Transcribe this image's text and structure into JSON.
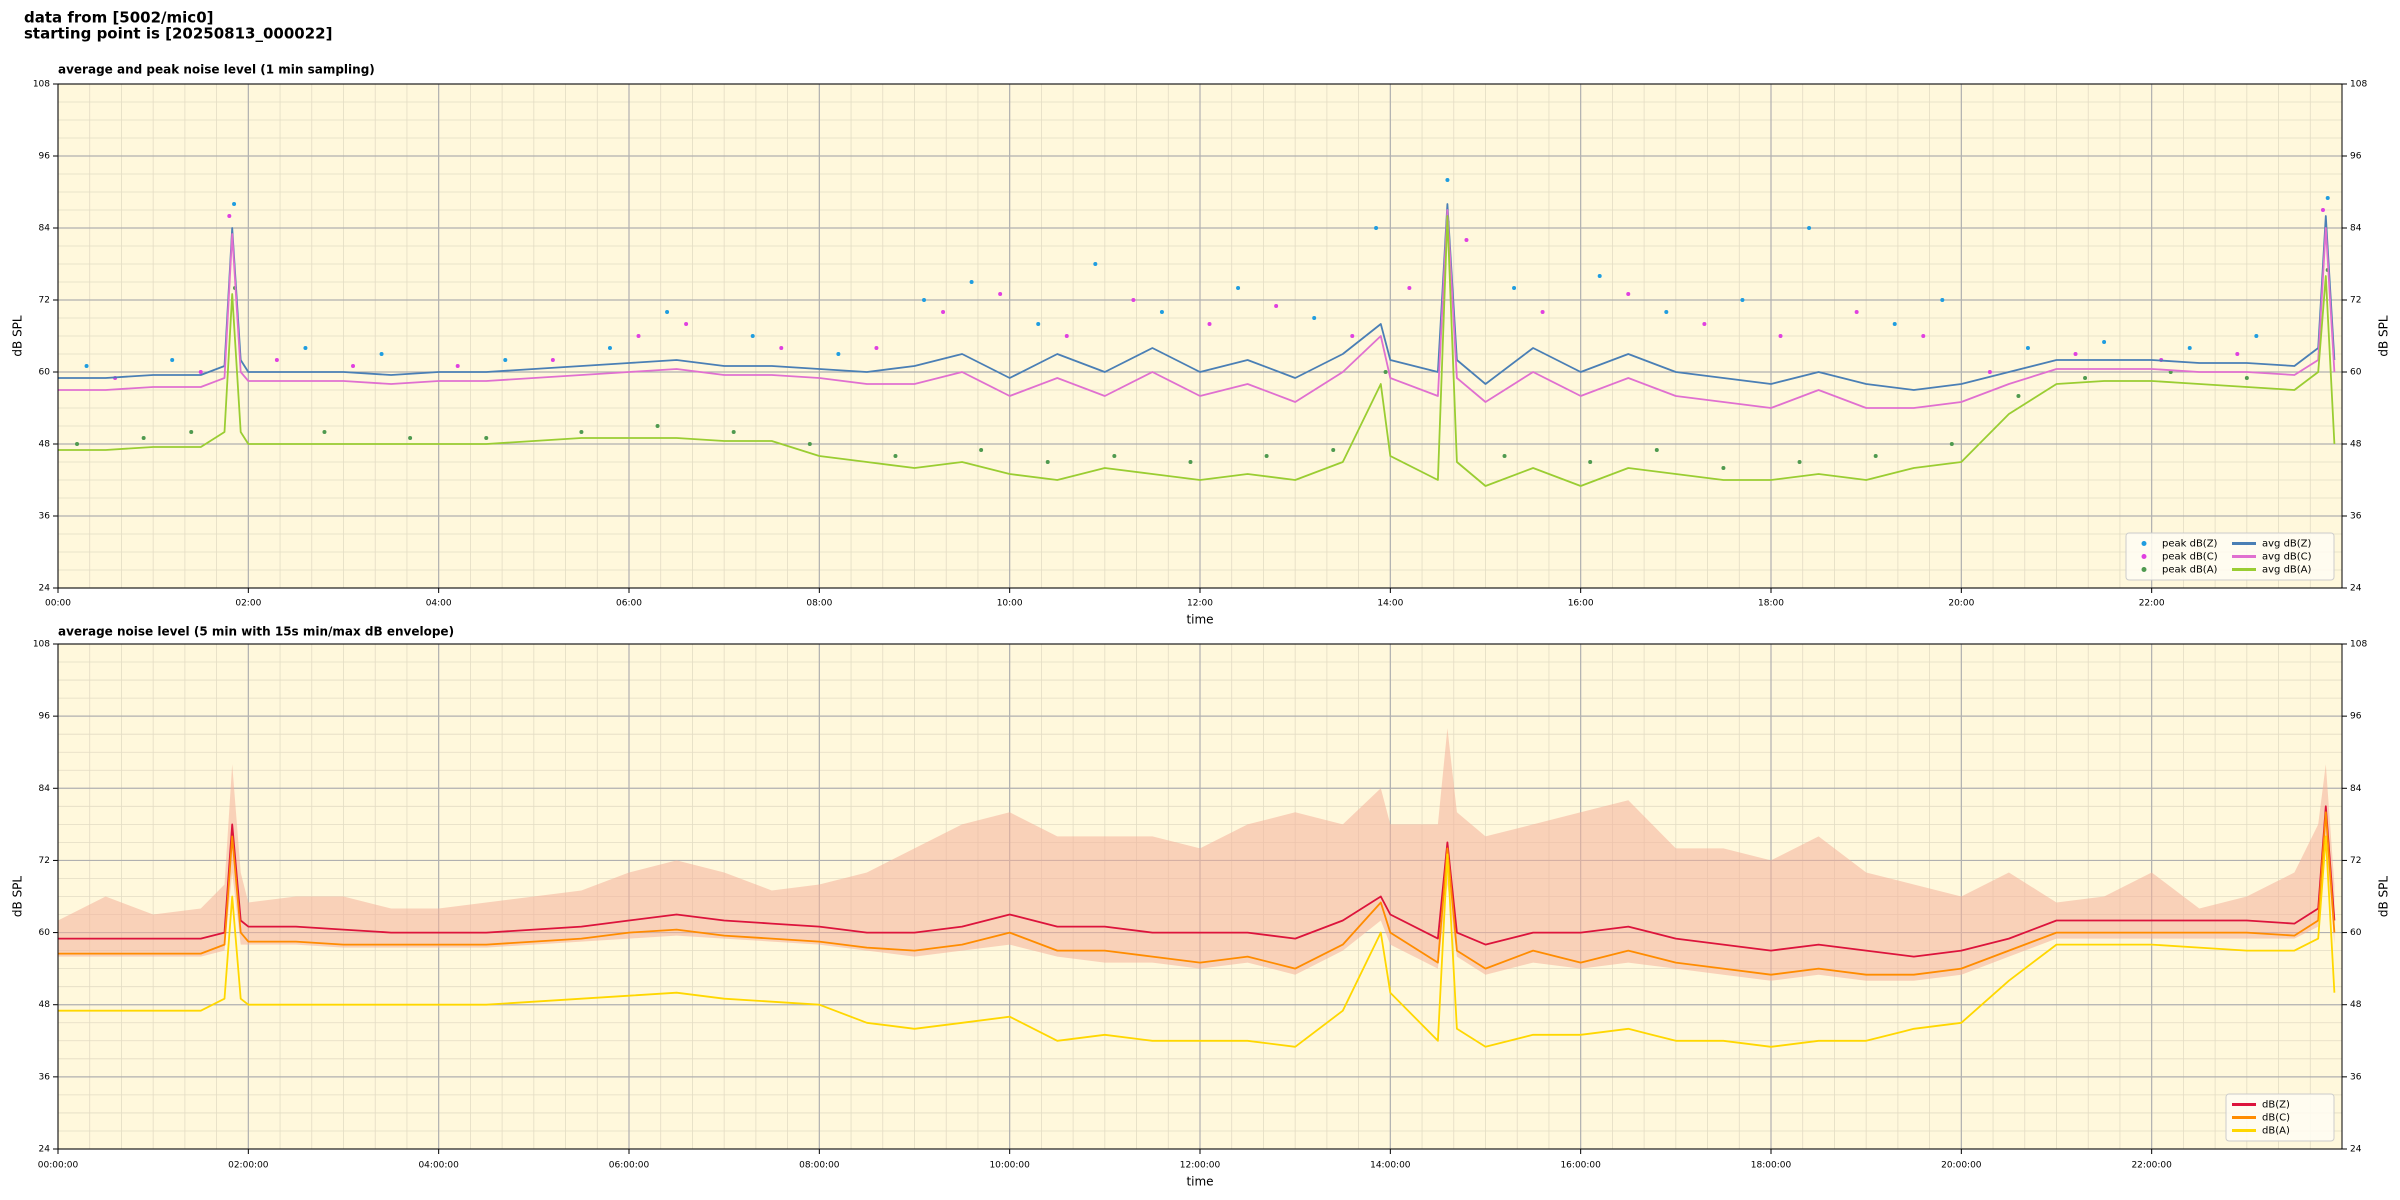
{
  "header": [
    "data from [5002/mic0]",
    "starting point is [20250813_000022]"
  ],
  "chart_data": [
    {
      "type": "line",
      "title": "average and peak noise level (1 min sampling)",
      "xlabel": "time",
      "ylabel": "dB SPL",
      "background": "#fff8dc",
      "grid": true,
      "legend": "lower right",
      "legend_columns": 2,
      "xlim": [
        0,
        24
      ],
      "xticks": [
        {
          "value": 0,
          "label": "00:00"
        },
        {
          "value": 2,
          "label": "02:00"
        },
        {
          "value": 4,
          "label": "04:00"
        },
        {
          "value": 6,
          "label": "06:00"
        },
        {
          "value": 8,
          "label": "08:00"
        },
        {
          "value": 10,
          "label": "10:00"
        },
        {
          "value": 12,
          "label": "12:00"
        },
        {
          "value": 14,
          "label": "14:00"
        },
        {
          "value": 16,
          "label": "16:00"
        },
        {
          "value": 18,
          "label": "18:00"
        },
        {
          "value": 20,
          "label": "20:00"
        },
        {
          "value": 22,
          "label": "22:00"
        }
      ],
      "ylim": [
        24,
        108
      ],
      "yticks": [
        24,
        36,
        48,
        60,
        72,
        84,
        96,
        108
      ],
      "x": [
        0,
        0.5,
        1,
        1.5,
        1.75,
        1.83,
        1.92,
        2,
        2.5,
        3,
        3.5,
        4,
        4.5,
        5,
        5.5,
        6,
        6.5,
        7,
        7.5,
        8,
        8.5,
        9,
        9.5,
        10,
        10.5,
        11,
        11.5,
        12,
        12.5,
        13,
        13.5,
        13.9,
        14,
        14.5,
        14.6,
        14.7,
        15,
        15.5,
        16,
        16.5,
        17,
        17.5,
        18,
        18.5,
        19,
        19.5,
        20,
        20.5,
        21,
        21.5,
        22,
        22.5,
        23,
        23.5,
        23.75,
        23.83,
        23.92
      ],
      "series": [
        {
          "name": "peak dB(Z)",
          "type": "scatter",
          "color": "#1f9de0",
          "x": [
            0.3,
            1.2,
            1.85,
            2.6,
            3.4,
            4.7,
            5.8,
            6.4,
            7.3,
            8.2,
            9.1,
            9.6,
            10.3,
            10.9,
            11.6,
            12.4,
            13.2,
            13.85,
            14.6,
            15.3,
            16.2,
            16.9,
            17.7,
            18.4,
            19.3,
            19.8,
            20.7,
            21.5,
            22.4,
            23.1,
            23.85
          ],
          "values": [
            61,
            62,
            88,
            64,
            63,
            62,
            64,
            70,
            66,
            63,
            72,
            75,
            68,
            78,
            70,
            74,
            69,
            84,
            92,
            74,
            76,
            70,
            72,
            84,
            68,
            72,
            64,
            65,
            64,
            66,
            89
          ]
        },
        {
          "name": "peak dB(C)",
          "type": "scatter",
          "color": "#e040e0",
          "x": [
            0.6,
            1.5,
            1.8,
            2.3,
            3.1,
            4.2,
            5.2,
            6.1,
            6.6,
            7.6,
            8.6,
            9.3,
            9.9,
            10.6,
            11.3,
            12.1,
            12.8,
            13.6,
            14.2,
            14.8,
            15.6,
            16.5,
            17.3,
            18.1,
            18.9,
            19.6,
            20.3,
            21.2,
            22.1,
            22.9,
            23.8
          ],
          "values": [
            59,
            60,
            86,
            62,
            61,
            61,
            62,
            66,
            68,
            64,
            64,
            70,
            73,
            66,
            72,
            68,
            71,
            66,
            74,
            82,
            70,
            73,
            68,
            66,
            70,
            66,
            60,
            63,
            62,
            63,
            87
          ]
        },
        {
          "name": "peak dB(A)",
          "type": "scatter",
          "color": "#4f9a4f",
          "x": [
            0.2,
            0.9,
            1.4,
            1.86,
            2.8,
            3.7,
            4.5,
            5.5,
            6.3,
            7.1,
            7.9,
            8.8,
            9.7,
            10.4,
            11.1,
            11.9,
            12.7,
            13.4,
            13.95,
            14.6,
            15.2,
            16.1,
            16.8,
            17.5,
            18.3,
            19.1,
            19.9,
            20.6,
            21.3,
            22.2,
            23.0,
            23.85
          ],
          "values": [
            48,
            49,
            50,
            74,
            50,
            49,
            49,
            50,
            51,
            50,
            48,
            46,
            47,
            45,
            46,
            45,
            46,
            47,
            60,
            85,
            46,
            45,
            47,
            44,
            45,
            46,
            48,
            56,
            59,
            60,
            59,
            77
          ]
        },
        {
          "name": "avg dB(Z)",
          "color": "#4a7fb5",
          "values": [
            59,
            59,
            59.5,
            59.5,
            61,
            84,
            62,
            60,
            60,
            60,
            59.5,
            60,
            60,
            60.5,
            61,
            61.5,
            62,
            61,
            61,
            60.5,
            60,
            61,
            63,
            59,
            63,
            60,
            64,
            60,
            62,
            59,
            63,
            68,
            62,
            60,
            88,
            62,
            58,
            64,
            60,
            63,
            60,
            59,
            58,
            60,
            58,
            57,
            58,
            60,
            62,
            62,
            62,
            61.5,
            61.5,
            61,
            64,
            86,
            62
          ]
        },
        {
          "name": "avg dB(C)",
          "color": "#e070d0",
          "values": [
            57,
            57,
            57.5,
            57.5,
            59,
            83,
            60,
            58.5,
            58.5,
            58.5,
            58,
            58.5,
            58.5,
            59,
            59.5,
            60,
            60.5,
            59.5,
            59.5,
            59,
            58,
            58,
            60,
            56,
            59,
            56,
            60,
            56,
            58,
            55,
            60,
            66,
            59,
            56,
            87,
            59,
            55,
            60,
            56,
            59,
            56,
            55,
            54,
            57,
            54,
            54,
            55,
            58,
            60.5,
            60.5,
            60.5,
            60,
            60,
            59.5,
            62,
            84,
            60
          ]
        },
        {
          "name": "avg dB(A)",
          "color": "#9acd32",
          "values": [
            47,
            47,
            47.5,
            47.5,
            50,
            73,
            50,
            48,
            48,
            48,
            48,
            48,
            48,
            48.5,
            49,
            49,
            49,
            48.5,
            48.5,
            46,
            45,
            44,
            45,
            43,
            42,
            44,
            43,
            42,
            43,
            42,
            45,
            58,
            46,
            42,
            86,
            45,
            41,
            44,
            41,
            44,
            43,
            42,
            42,
            43,
            42,
            44,
            45,
            53,
            58,
            58.5,
            58.5,
            58,
            57.5,
            57,
            60,
            76,
            48
          ]
        }
      ]
    },
    {
      "type": "line",
      "title": "average noise level (5 min with 15s min/max dB envelope)",
      "xlabel": "time",
      "ylabel": "dB SPL",
      "background": "#fff8dc",
      "grid": true,
      "legend": "lower right",
      "legend_columns": 1,
      "xlim": [
        0,
        24
      ],
      "xticks": [
        {
          "value": 0,
          "label": "00:00:00"
        },
        {
          "value": 2,
          "label": "02:00:00"
        },
        {
          "value": 4,
          "label": "04:00:00"
        },
        {
          "value": 6,
          "label": "06:00:00"
        },
        {
          "value": 8,
          "label": "08:00:00"
        },
        {
          "value": 10,
          "label": "10:00:00"
        },
        {
          "value": 12,
          "label": "12:00:00"
        },
        {
          "value": 14,
          "label": "14:00:00"
        },
        {
          "value": 16,
          "label": "16:00:00"
        },
        {
          "value": 18,
          "label": "18:00:00"
        },
        {
          "value": 20,
          "label": "20:00:00"
        },
        {
          "value": 22,
          "label": "22:00:00"
        }
      ],
      "ylim": [
        24,
        108
      ],
      "yticks": [
        24,
        36,
        48,
        60,
        72,
        84,
        96,
        108
      ],
      "x": [
        0,
        0.5,
        1,
        1.5,
        1.75,
        1.83,
        1.92,
        2,
        2.5,
        3,
        3.5,
        4,
        4.5,
        5,
        5.5,
        6,
        6.5,
        7,
        7.5,
        8,
        8.5,
        9,
        9.5,
        10,
        10.5,
        11,
        11.5,
        12,
        12.5,
        13,
        13.5,
        13.9,
        14,
        14.5,
        14.6,
        14.7,
        15,
        15.5,
        16,
        16.5,
        17,
        17.5,
        18,
        18.5,
        19,
        19.5,
        20,
        20.5,
        21,
        21.5,
        22,
        22.5,
        23,
        23.5,
        23.75,
        23.83,
        23.92
      ],
      "envelope": {
        "color": "#f4b09a",
        "lower": [
          56,
          56,
          56,
          56,
          57,
          70,
          58,
          58,
          58,
          57.5,
          57.5,
          57.5,
          57.5,
          58,
          58.5,
          59,
          59.5,
          59,
          58.5,
          58,
          57,
          56,
          57,
          58,
          56,
          55,
          55,
          54,
          55,
          53,
          57,
          62,
          58,
          54,
          68,
          56,
          53,
          55,
          54,
          55,
          54,
          53,
          52,
          53,
          52,
          52,
          53,
          56,
          59,
          59,
          59,
          59,
          59,
          59,
          61,
          75,
          58
        ],
        "upper": [
          62,
          66,
          63,
          64,
          68,
          88,
          70,
          65,
          66,
          66,
          64,
          64,
          65,
          66,
          67,
          70,
          72,
          70,
          67,
          68,
          70,
          74,
          78,
          80,
          76,
          76,
          76,
          74,
          78,
          80,
          78,
          84,
          78,
          78,
          94,
          80,
          76,
          78,
          80,
          82,
          74,
          74,
          72,
          76,
          70,
          68,
          66,
          70,
          65,
          66,
          70,
          64,
          66,
          70,
          78,
          88,
          68
        ]
      },
      "series": [
        {
          "name": "dB(Z)",
          "color": "#dc143c",
          "values": [
            59,
            59,
            59,
            59,
            60,
            78,
            62,
            61,
            61,
            60.5,
            60,
            60,
            60,
            60.5,
            61,
            62,
            63,
            62,
            61.5,
            61,
            60,
            60,
            61,
            63,
            61,
            61,
            60,
            60,
            60,
            59,
            62,
            66,
            63,
            59,
            75,
            60,
            58,
            60,
            60,
            61,
            59,
            58,
            57,
            58,
            57,
            56,
            57,
            59,
            62,
            62,
            62,
            62,
            62,
            61.5,
            64,
            81,
            62
          ]
        },
        {
          "name": "dB(C)",
          "color": "#ff8c00",
          "values": [
            56.5,
            56.5,
            56.5,
            56.5,
            58,
            76,
            60,
            58.5,
            58.5,
            58,
            58,
            58,
            58,
            58.5,
            59,
            60,
            60.5,
            59.5,
            59,
            58.5,
            57.5,
            57,
            58,
            60,
            57,
            57,
            56,
            55,
            56,
            54,
            58,
            65,
            60,
            55,
            74,
            57,
            54,
            57,
            55,
            57,
            55,
            54,
            53,
            54,
            53,
            53,
            54,
            57,
            60,
            60,
            60,
            60,
            60,
            59.5,
            62,
            80,
            60
          ]
        },
        {
          "name": "dB(A)",
          "color": "#ffd700",
          "values": [
            47,
            47,
            47,
            47,
            49,
            66,
            49,
            48,
            48,
            48,
            48,
            48,
            48,
            48.5,
            49,
            49.5,
            50,
            49,
            48.5,
            48,
            45,
            44,
            45,
            46,
            42,
            43,
            42,
            42,
            42,
            41,
            47,
            60,
            50,
            42,
            73,
            44,
            41,
            43,
            43,
            44,
            42,
            42,
            41,
            42,
            42,
            44,
            45,
            52,
            58,
            58,
            58,
            57.5,
            57,
            57,
            59,
            76,
            50
          ]
        }
      ]
    }
  ]
}
